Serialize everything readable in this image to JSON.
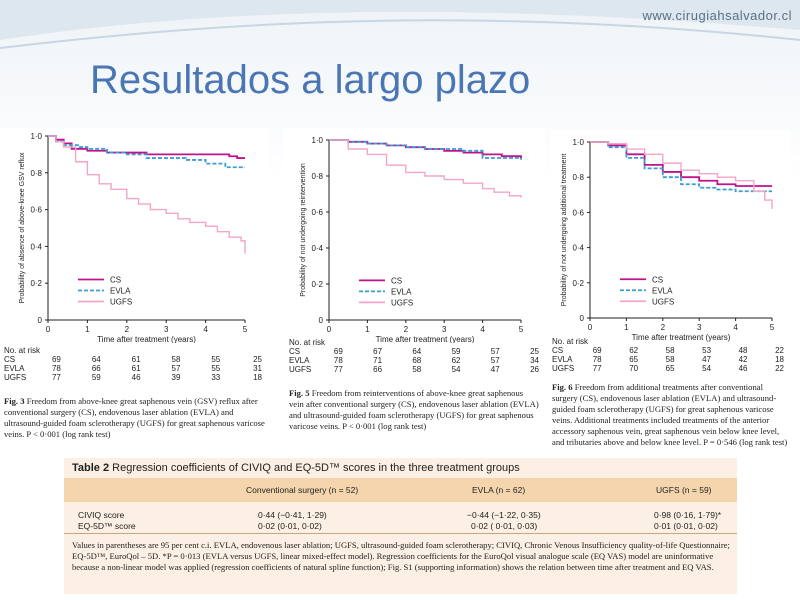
{
  "header": {
    "website": "www.cirugiahsalvador.cl",
    "title": "Resultados a largo plazo"
  },
  "chart_data": [
    {
      "type": "line",
      "ylabel": "Probability of absence of above-knee GSV reflux",
      "xlabel": "Time after treatment (years)",
      "xlim": [
        0,
        5
      ],
      "ylim": [
        0,
        1.0
      ],
      "x_ticks": [
        "0",
        "1",
        "2",
        "3",
        "4",
        "5"
      ],
      "y_ticks": [
        "0",
        "0·2",
        "0·4",
        "0·6",
        "0·8",
        "1·0"
      ],
      "legend": "lower-left",
      "series": [
        {
          "name": "CS",
          "color": "#c0128c",
          "dash": "solid",
          "x": [
            0,
            0.2,
            0.4,
            0.6,
            1.0,
            1.5,
            2.0,
            2.5,
            3.0,
            3.5,
            4.0,
            4.6,
            4.8,
            5.0
          ],
          "y": [
            1.0,
            0.98,
            0.96,
            0.93,
            0.92,
            0.91,
            0.91,
            0.9,
            0.9,
            0.9,
            0.9,
            0.89,
            0.88,
            0.88
          ]
        },
        {
          "name": "EVLA",
          "color": "#3a9fcf",
          "dash": "dashed",
          "x": [
            0,
            0.2,
            0.4,
            0.8,
            1.0,
            1.5,
            2.0,
            2.5,
            3.0,
            3.5,
            4.0,
            4.5,
            5.0
          ],
          "y": [
            1.0,
            0.97,
            0.95,
            0.94,
            0.93,
            0.91,
            0.9,
            0.88,
            0.88,
            0.87,
            0.85,
            0.83,
            0.83
          ]
        },
        {
          "name": "UGFS",
          "color": "#f2a5c8",
          "dash": "solid",
          "x": [
            0,
            0.2,
            0.4,
            0.7,
            1.0,
            1.3,
            1.6,
            2.0,
            2.3,
            2.6,
            3.0,
            3.3,
            3.6,
            4.0,
            4.3,
            4.6,
            4.9,
            5.0
          ],
          "y": [
            1.0,
            0.97,
            0.94,
            0.86,
            0.79,
            0.74,
            0.71,
            0.66,
            0.63,
            0.6,
            0.58,
            0.55,
            0.53,
            0.51,
            0.48,
            0.45,
            0.43,
            0.36
          ]
        }
      ],
      "at_risk": {
        "title": "No. at risk",
        "rows": [
          {
            "label": "CS",
            "values": [
              "69",
              "64",
              "61",
              "58",
              "55",
              "25"
            ]
          },
          {
            "label": "EVLA",
            "values": [
              "78",
              "66",
              "61",
              "57",
              "55",
              "31"
            ]
          },
          {
            "label": "UGFS",
            "values": [
              "77",
              "59",
              "46",
              "39",
              "33",
              "18"
            ]
          }
        ]
      },
      "caption": {
        "label": "Fig. 3",
        "text": "Freedom from above-knee great saphenous vein (GSV) reflux after conventional surgery (CS), endovenous laser ablation (EVLA) and ultrasound-guided foam sclerotherapy (UGFS) for great saphenous varicose veins. P < 0·001 (log rank test)"
      }
    },
    {
      "type": "line",
      "ylabel": "Probability of not undergoing reintervention",
      "xlabel": "Time after treatment (years)",
      "xlim": [
        0,
        5
      ],
      "ylim": [
        0,
        1.0
      ],
      "x_ticks": [
        "0",
        "1",
        "2",
        "3",
        "4",
        "5"
      ],
      "y_ticks": [
        "0",
        "0·2",
        "0·4",
        "0·6",
        "0·8",
        "1·0"
      ],
      "legend": "lower-left",
      "series": [
        {
          "name": "CS",
          "color": "#c0128c",
          "dash": "solid",
          "x": [
            0,
            0.5,
            1.0,
            1.5,
            2.0,
            2.5,
            3.0,
            3.5,
            4.0,
            4.5,
            5.0
          ],
          "y": [
            1.0,
            0.99,
            0.98,
            0.97,
            0.96,
            0.95,
            0.94,
            0.93,
            0.92,
            0.91,
            0.9
          ]
        },
        {
          "name": "EVLA",
          "color": "#3a9fcf",
          "dash": "dashed",
          "x": [
            0,
            0.5,
            1.0,
            1.5,
            2.0,
            2.5,
            3.0,
            3.5,
            4.0,
            4.5,
            5.0
          ],
          "y": [
            1.0,
            0.99,
            0.98,
            0.97,
            0.96,
            0.95,
            0.95,
            0.94,
            0.9,
            0.9,
            0.89
          ]
        },
        {
          "name": "UGFS",
          "color": "#f2a5c8",
          "dash": "solid",
          "x": [
            0,
            0.5,
            1.0,
            1.5,
            2.0,
            2.5,
            3.0,
            3.5,
            4.0,
            4.3,
            4.7,
            5.0
          ],
          "y": [
            1.0,
            0.95,
            0.92,
            0.86,
            0.82,
            0.8,
            0.78,
            0.76,
            0.73,
            0.71,
            0.69,
            0.68
          ]
        }
      ],
      "at_risk": {
        "title": "No. at risk",
        "rows": [
          {
            "label": "CS",
            "values": [
              "69",
              "67",
              "64",
              "59",
              "57",
              "25"
            ]
          },
          {
            "label": "EVLA",
            "values": [
              "78",
              "71",
              "68",
              "62",
              "57",
              "34"
            ]
          },
          {
            "label": "UGFS",
            "values": [
              "77",
              "66",
              "58",
              "54",
              "47",
              "26"
            ]
          }
        ]
      },
      "caption": {
        "label": "Fig. 5",
        "text": "Freedom from reinterventions of above-knee great saphenous vein after conventional surgery (CS), endovenous laser ablation (EVLA) and ultrasound-guided foam sclerotherapy (UGFS) for great saphenous varicose veins. P < 0·001 (log rank test)"
      }
    },
    {
      "type": "line",
      "ylabel": "Probability of not undergoing additional treatment",
      "xlabel": "Time after treatment (years)",
      "xlim": [
        0,
        5
      ],
      "ylim": [
        0,
        1.0
      ],
      "x_ticks": [
        "0",
        "1",
        "2",
        "3",
        "4",
        "5"
      ],
      "y_ticks": [
        "0",
        "0·2",
        "0·4",
        "0·6",
        "0·8",
        "1·0"
      ],
      "legend": "lower-left",
      "series": [
        {
          "name": "CS",
          "color": "#c0128c",
          "dash": "solid",
          "x": [
            0,
            0.5,
            1.0,
            1.5,
            2.0,
            2.5,
            3.0,
            3.5,
            4.0,
            4.5,
            5.0
          ],
          "y": [
            1.0,
            0.98,
            0.93,
            0.87,
            0.83,
            0.8,
            0.78,
            0.76,
            0.75,
            0.75,
            0.75
          ]
        },
        {
          "name": "EVLA",
          "color": "#3a9fcf",
          "dash": "dashed",
          "x": [
            0,
            0.5,
            1.0,
            1.5,
            2.0,
            2.5,
            3.0,
            3.5,
            4.0,
            4.5,
            5.0
          ],
          "y": [
            1.0,
            0.97,
            0.91,
            0.85,
            0.8,
            0.76,
            0.74,
            0.73,
            0.72,
            0.72,
            0.72
          ]
        },
        {
          "name": "UGFS",
          "color": "#f2a5c8",
          "dash": "solid",
          "x": [
            0,
            0.5,
            1.0,
            1.5,
            2.0,
            2.5,
            3.0,
            3.5,
            4.0,
            4.5,
            4.8,
            5.0
          ],
          "y": [
            1.0,
            0.99,
            0.96,
            0.93,
            0.88,
            0.84,
            0.82,
            0.8,
            0.78,
            0.72,
            0.67,
            0.62
          ]
        }
      ],
      "at_risk": {
        "title": "No. at risk",
        "rows": [
          {
            "label": "CS",
            "values": [
              "69",
              "62",
              "58",
              "53",
              "48",
              "22"
            ]
          },
          {
            "label": "EVLA",
            "values": [
              "78",
              "65",
              "58",
              "47",
              "42",
              "18"
            ]
          },
          {
            "label": "UGFS",
            "values": [
              "77",
              "70",
              "65",
              "54",
              "46",
              "22"
            ]
          }
        ]
      },
      "caption": {
        "label": "Fig. 6",
        "text": "Freedom from additional treatments after conventional surgery (CS), endovenous laser ablation (EVLA) and ultrasound-guided foam sclerotherapy (UGFS) for great saphenous varicose veins. Additional treatments included treatments of the anterior accessory saphenous vein, great saphenous vein below knee level, and tributaries above and below knee level. P = 0·546 (log rank test)"
      }
    },
    {
      "type": "table",
      "title_label": "Table 2",
      "title": "Regression coefficients of CIVIQ and EQ-5D™ scores in the three treatment groups",
      "columns": [
        "",
        "Conventional surgery (n = 52)",
        "EVLA (n = 62)",
        "UGFS (n = 59)"
      ],
      "rows": [
        [
          "CIVIQ score",
          "0·44 (−0·41, 1·29)",
          "−0·44 (−1·22, 0·35)",
          "0·98 (0·16, 1·79)*"
        ],
        [
          "EQ-5D™ score",
          "0·02 (0·01, 0·02)",
          "0·02 ( 0·01, 0·03)",
          "0·01 (0·01, 0·02)"
        ]
      ],
      "note": "Values in parentheses are 95 per cent c.i. EVLA, endovenous laser ablation; UGFS, ultrasound-guided foam sclerotherapy; CIVIQ, Chronic Venous Insufficiency quality-of-life Questionnaire; EQ-5D™, EuroQol – 5D. *P = 0·013 (EVLA versus UGFS, linear mixed-effect model). Regression coefficients for the EuroQol visual analogue scale (EQ VAS) model are uninformative because a non-linear model was applied (regression coefficients of natural spline function); Fig. S1 (supporting information) shows the relation between time after treatment and EQ VAS."
    }
  ]
}
